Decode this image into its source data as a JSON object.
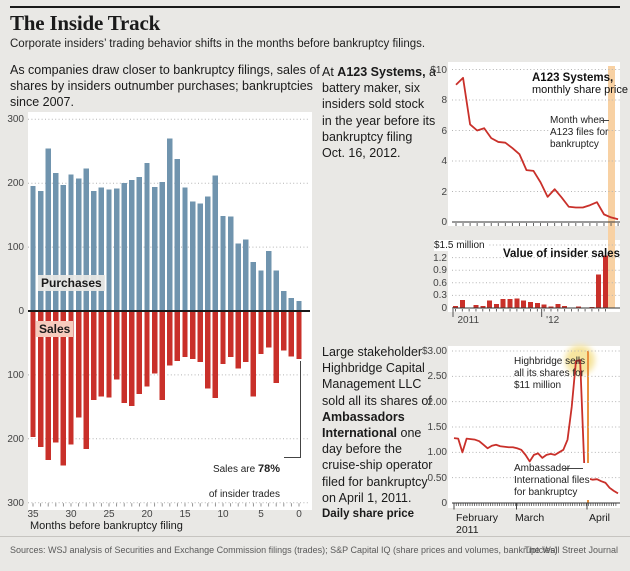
{
  "header": {
    "title": "The Inside Track",
    "subtitle": "Corporate insiders’ trading behavior shifts in the months before bankruptcy filings."
  },
  "intro": "As companies draw closer to bankruptcy filings, sales of shares by insiders outnumber purchases; bankruptcies since 2007.",
  "a123_note": {
    "prefix": "At ",
    "bold": "A123 Systems,",
    "rest": " a battery maker, six insiders sold stock in the year before its bankruptcy filing Oct. 16, 2012."
  },
  "highbridge_note": {
    "prefix": "Large stakeholder Highbridge Capital Management LLC sold all its shares of ",
    "bold": "Ambassadors International",
    "rest": " one day before the cruise-ship operator filed for bankruptcy on April 1, 2011.",
    "caption": "Daily share price"
  },
  "footer": {
    "sources": "Sources: WSJ analysis of Securities and Exchange Commission filings (trades); S&P Capital IQ (share prices and volumes, bankruptcies)",
    "credit": "The Wall Street Journal"
  },
  "colors": {
    "background": "#e9e8e5",
    "panel": "#ffffff",
    "blue": "#7094ae",
    "red": "#c9302a",
    "band_orange": "#f8d1a3",
    "vline_orange": "#e78f3e",
    "glow_yellow": "#f6e5a0",
    "grid": "#b4b4b4",
    "axis": "#1a1a1a",
    "sales_badge_bg": "#f6cbbd"
  },
  "chart_data": [
    {
      "id": "insider-trades",
      "type": "bar",
      "diverging": true,
      "xlabel": "Months before bankruptcy filing",
      "x_desc": "months before bankruptcy filing, 35 (left) to 0 (right)",
      "x_ticks": [
        "35",
        "30",
        "25",
        "20",
        "15",
        "10",
        "5",
        "0"
      ],
      "y_ticks_top": [
        "300",
        "200",
        "100"
      ],
      "y_zero": "0",
      "y_ticks_bottom": [
        "100",
        "200",
        "300"
      ],
      "ylim": [
        -300,
        300
      ],
      "series_up": {
        "name": "Purchases",
        "color": "#7094ae",
        "values": [
          196,
          188,
          254,
          216,
          197,
          214,
          207,
          223,
          188,
          193,
          190,
          192,
          200,
          205,
          210,
          232,
          194,
          202,
          270,
          238,
          193,
          171,
          168,
          179,
          212,
          149,
          148,
          106,
          112,
          77,
          63,
          94,
          63,
          31,
          20,
          16
        ]
      },
      "series_down": {
        "name": "Sales",
        "color": "#c9302a",
        "values": [
          197,
          213,
          233,
          206,
          242,
          209,
          167,
          216,
          139,
          134,
          135,
          107,
          144,
          149,
          130,
          118,
          98,
          139,
          85,
          78,
          72,
          75,
          80,
          121,
          136,
          83,
          72,
          90,
          80,
          134,
          67,
          57,
          113,
          62,
          71,
          75
        ]
      },
      "annotation": {
        "pre": "Sales are ",
        "bold": "78%",
        "line2": "of insider trades"
      }
    },
    {
      "id": "a123-share-price",
      "type": "line",
      "title": "A123 Systems,",
      "subtitle": "monthly share price",
      "y_ticks": [
        "$10",
        "8",
        "6",
        "4",
        "2",
        "0"
      ],
      "ylim": [
        0,
        10
      ],
      "values": [
        9.0,
        9.45,
        6.4,
        6.0,
        6.15,
        5.5,
        5.25,
        5.2,
        4.85,
        4.45,
        3.4,
        3.35,
        2.6,
        1.65,
        2.15,
        1.6,
        1.0,
        0.95,
        0.95,
        1.1,
        1.3,
        0.5,
        0.3,
        0.18
      ],
      "annotation": "Month when\nA123 files for\nbankruptcy",
      "band_color": "#f8d1a3",
      "line_color": "#c9302a"
    },
    {
      "id": "insider-sales-value",
      "type": "bar",
      "title": "Value of insider sales",
      "y_top_label": "$1.5 million",
      "y_ticks": [
        "1.2",
        "0.9",
        "0.6",
        "0.3",
        "0"
      ],
      "ylim": [
        0,
        1.5
      ],
      "x_year_labels": [
        {
          "text": "2011",
          "index": 0
        },
        {
          "text": "'12",
          "index": 13
        }
      ],
      "bar_color": "#c9302a",
      "values": [
        0.05,
        0.19,
        0.01,
        0.07,
        0.05,
        0.18,
        0.1,
        0.22,
        0.22,
        0.23,
        0.18,
        0.14,
        0.12,
        0.08,
        0.03,
        0.1,
        0.05,
        0.01,
        0.03,
        0.01,
        0.02,
        0.8,
        1.25
      ]
    },
    {
      "id": "ambassadors-daily-price",
      "type": "line",
      "y_ticks": [
        "$3.00",
        "2.50",
        "2.00",
        "1.50",
        "1.00",
        "0.50",
        "0"
      ],
      "ylim": [
        0,
        3
      ],
      "x_month_labels": [
        "February",
        "March",
        "April"
      ],
      "x_year": "2011",
      "values": [
        1.28,
        1.27,
        1.0,
        1.27,
        1.26,
        1.25,
        1.22,
        1.15,
        1.08,
        1.13,
        1.15,
        1.12,
        1.11,
        1.1,
        1.1,
        1.08,
        1.05,
        0.95,
        0.82,
        0.95,
        0.98,
        0.89,
        0.95,
        0.97,
        0.95,
        1.0,
        1.05,
        1.25,
        1.9,
        2.8,
        2.82,
        0.7,
        0.48,
        0.46,
        0.47,
        0.43,
        0.4,
        0.3,
        0.24,
        0.19
      ],
      "ann_peak": "Highbridge sells\nall its shares for\n$11 million",
      "ann_file": "Ambassador\nInternational files\nfor bankruptcy",
      "line_color": "#c9302a",
      "vline_color": "#e78f3e",
      "glow_color": "#f6e5a0"
    }
  ]
}
